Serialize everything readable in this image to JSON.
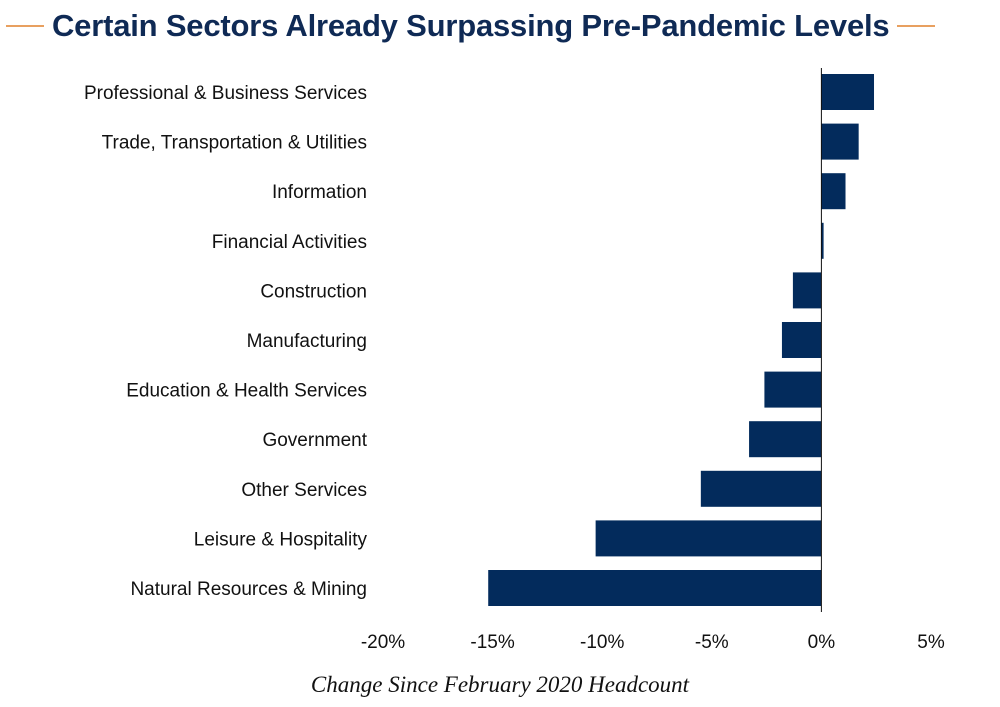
{
  "chart_data": {
    "type": "bar",
    "orientation": "horizontal",
    "title": "Certain Sectors Already Surpassing Pre-Pandemic Levels",
    "xlabel": "Change Since February 2020 Headcount",
    "categories": [
      "Professional & Business Services",
      "Trade, Transportation & Utilities",
      "Information",
      "Financial Activities",
      "Construction",
      "Manufacturing",
      "Education & Health Services",
      "Government",
      "Other Services",
      "Leisure & Hospitality",
      "Natural Resources & Mining"
    ],
    "values": [
      2.4,
      1.7,
      1.1,
      0.1,
      -1.3,
      -1.8,
      -2.6,
      -3.3,
      -5.5,
      -10.3,
      -15.2
    ],
    "xlim": [
      -20,
      5
    ],
    "xticks": [
      -20,
      -15,
      -10,
      -5,
      0,
      5
    ],
    "xtick_labels": [
      "-20%",
      "-15%",
      "-10%",
      "-5%",
      "0%",
      "5%"
    ],
    "bar_color": "#032b5c",
    "grid": false,
    "legend": false
  },
  "colors": {
    "title": "#0f2a55",
    "accent_rule": "#e8a060",
    "axis": "#111111"
  }
}
